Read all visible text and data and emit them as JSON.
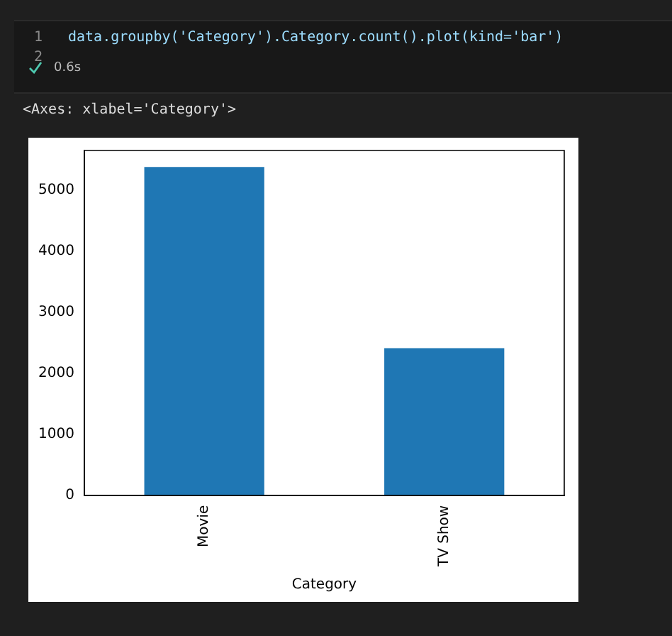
{
  "chart_data": {
    "type": "bar",
    "annotations": [
      "1",
      "data.groupby('Category').Category.count().plot(kind='bar')",
      "2",
      "0.6s",
      "<Axes: xlabel='Category'>"
    ],
    "xlabel": "Category",
    "categories": [
      "Movie",
      "TV Show"
    ],
    "values": [
      5380,
      2410
    ],
    "color": "#1f77b4",
    "ylim": [
      0,
      5650
    ],
    "yticks": [
      0,
      1000,
      2000,
      3000,
      4000,
      5000
    ],
    "grid": false,
    "legend": false
  }
}
